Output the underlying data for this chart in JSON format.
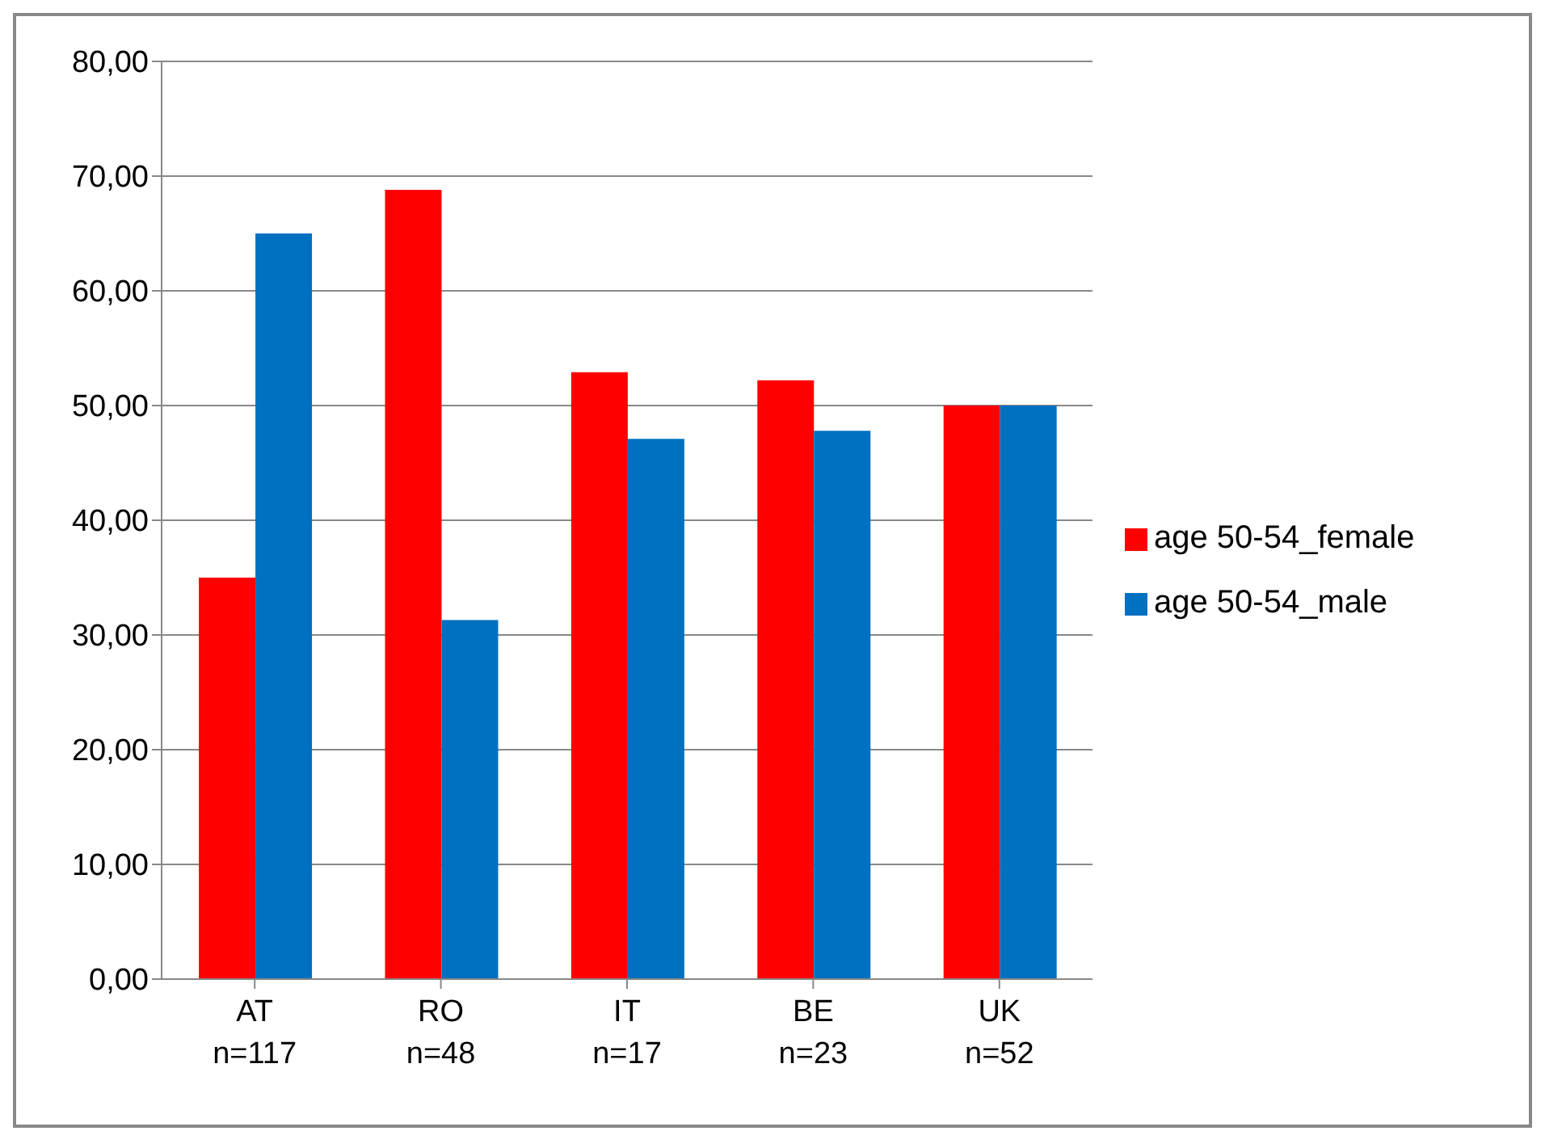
{
  "chart_data": {
    "type": "bar",
    "categories": [
      "AT\nn=117",
      "RO\nn=48",
      "IT\nn=17",
      "BE\nn=23",
      "UK\nn=52"
    ],
    "series": [
      {
        "name": "age 50-54_female",
        "color": "#ff0000",
        "values": [
          35.0,
          68.8,
          52.9,
          52.2,
          50.0
        ]
      },
      {
        "name": "age 50-54_male",
        "color": "#0070c0",
        "values": [
          65.0,
          31.3,
          47.1,
          47.8,
          50.0
        ]
      }
    ],
    "ylim": [
      0,
      80
    ],
    "yticks": [
      {
        "value": 0,
        "label": "0,00"
      },
      {
        "value": 10,
        "label": "10,00"
      },
      {
        "value": 20,
        "label": "20,00"
      },
      {
        "value": 30,
        "label": "30,00"
      },
      {
        "value": 40,
        "label": "40,00"
      },
      {
        "value": 50,
        "label": "50,00"
      },
      {
        "value": 60,
        "label": "60,00"
      },
      {
        "value": 70,
        "label": "70,00"
      },
      {
        "value": 80,
        "label": "80,00"
      }
    ],
    "grid": "y",
    "legend": "right"
  }
}
